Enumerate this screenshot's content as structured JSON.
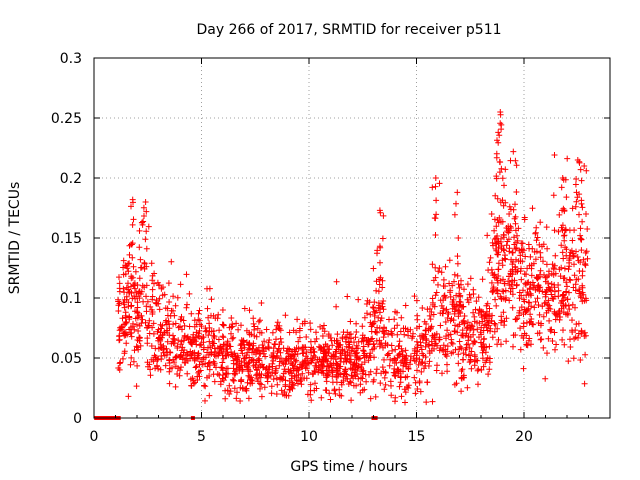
{
  "chart_data": {
    "type": "scatter",
    "title": "Day 266 of 2017, SRMTID for receiver p511",
    "xlabel": "GPS time / hours",
    "ylabel": "SRMTID / TECUs",
    "xlim": [
      0,
      24
    ],
    "ylim": [
      0,
      0.3
    ],
    "x_ticks": [
      0,
      5,
      10,
      15,
      20
    ],
    "x_tick_labels": [
      "0",
      "5",
      "10",
      "15",
      "20"
    ],
    "y_ticks": [
      0,
      0.05,
      0.1,
      0.15,
      0.2,
      0.25,
      0.3
    ],
    "y_tick_labels": [
      "0",
      "0.05",
      "0.1",
      "0.15",
      "0.2",
      "0.25",
      "0.3"
    ],
    "grid": true,
    "marker": "+",
    "color": "#ff0000",
    "series": [
      {
        "name": "SRMTID",
        "x_range": [
          1.1,
          22.9
        ],
        "envelope": [
          {
            "t": 1.2,
            "median": 0.08,
            "spread": 0.025
          },
          {
            "t": 1.6,
            "median": 0.09,
            "spread": 0.03
          },
          {
            "t": 2.5,
            "median": 0.085,
            "spread": 0.035
          },
          {
            "t": 3.5,
            "median": 0.065,
            "spread": 0.025
          },
          {
            "t": 5.0,
            "median": 0.055,
            "spread": 0.02
          },
          {
            "t": 7.0,
            "median": 0.048,
            "spread": 0.02
          },
          {
            "t": 9.0,
            "median": 0.045,
            "spread": 0.018
          },
          {
            "t": 11.0,
            "median": 0.045,
            "spread": 0.018
          },
          {
            "t": 12.5,
            "median": 0.05,
            "spread": 0.02
          },
          {
            "t": 13.2,
            "median": 0.075,
            "spread": 0.03
          },
          {
            "t": 14.0,
            "median": 0.045,
            "spread": 0.02
          },
          {
            "t": 15.0,
            "median": 0.055,
            "spread": 0.025
          },
          {
            "t": 16.0,
            "median": 0.08,
            "spread": 0.03
          },
          {
            "t": 17.0,
            "median": 0.075,
            "spread": 0.03
          },
          {
            "t": 18.0,
            "median": 0.065,
            "spread": 0.025
          },
          {
            "t": 19.0,
            "median": 0.13,
            "spread": 0.045
          },
          {
            "t": 20.0,
            "median": 0.11,
            "spread": 0.035
          },
          {
            "t": 21.0,
            "median": 0.1,
            "spread": 0.03
          },
          {
            "t": 22.0,
            "median": 0.11,
            "spread": 0.045
          },
          {
            "t": 22.9,
            "median": 0.1,
            "spread": 0.04
          }
        ],
        "peaks": [
          {
            "x": 1.8,
            "y": 0.182
          },
          {
            "x": 2.4,
            "y": 0.18
          },
          {
            "x": 13.3,
            "y": 0.173
          },
          {
            "x": 15.9,
            "y": 0.2
          },
          {
            "x": 16.9,
            "y": 0.188
          },
          {
            "x": 18.9,
            "y": 0.255
          },
          {
            "x": 18.8,
            "y": 0.238
          },
          {
            "x": 19.5,
            "y": 0.222
          },
          {
            "x": 22.5,
            "y": 0.215
          },
          {
            "x": 22.8,
            "y": 0.21
          },
          {
            "x": 21.8,
            "y": 0.2
          }
        ],
        "lows": [
          {
            "x": 1.6,
            "y": 0.018
          },
          {
            "x": 6.1,
            "y": 0.016
          },
          {
            "x": 14.0,
            "y": 0.014
          },
          {
            "x": 8.5,
            "y": 0.02
          },
          {
            "x": 15.2,
            "y": 0.022
          }
        ]
      }
    ],
    "zero_markers_x": [
      0.1,
      0.2,
      0.3,
      0.45,
      0.6,
      0.75,
      0.9,
      1.05,
      1.15,
      4.6,
      13.0,
      13.1
    ]
  }
}
